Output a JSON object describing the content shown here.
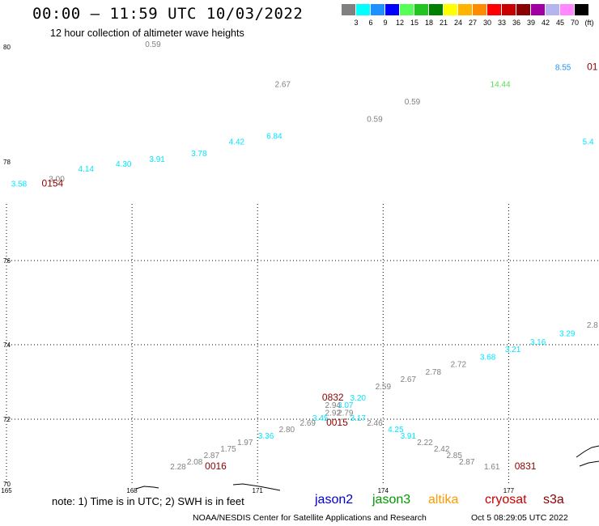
{
  "header": {
    "title": "00:00 – 11:59 UTC 10/03/2022",
    "subtitle": "12 hour collection of altimeter wave heights"
  },
  "legend": {
    "colors": [
      "#808080",
      "#00ffff",
      "#1e90ff",
      "#0000ff",
      "#55ff55",
      "#22c322",
      "#008000",
      "#ffff00",
      "#ffb400",
      "#ff8c00",
      "#ff0000",
      "#c80000",
      "#8b0000",
      "#a000a0",
      "#b4b4f0",
      "#ff88ff",
      "#000000"
    ],
    "labels": [
      "3",
      "6",
      "9",
      "12",
      "15",
      "18",
      "21",
      "24",
      "27",
      "30",
      "33",
      "36",
      "39",
      "42",
      "45",
      "70",
      "(ft)"
    ]
  },
  "chart_data": {
    "type": "scatter",
    "title": "00:00 – 11:59 UTC 10/03/2022",
    "subtitle": "12 hour collection of altimeter wave heights",
    "x_ticks": [
      "165",
      "168",
      "171",
      "174",
      "177"
    ],
    "y_ticks": [
      "70",
      "72",
      "74",
      "76",
      "78",
      "80"
    ],
    "series": [
      {
        "name": "jason3",
        "color": "#00e5ff"
      },
      {
        "name": "jason2",
        "color": "#0000cc"
      },
      {
        "name": "altika",
        "color": "#ff9900"
      },
      {
        "name": "cryosat",
        "color": "#cc0000"
      },
      {
        "name": "s3a",
        "color": "#8b0000"
      }
    ],
    "values": [
      {
        "text": "0.59",
        "color": "#808080",
        "x": 168.5,
        "y": 80.0
      },
      {
        "text": "2.67",
        "color": "#808080",
        "x": 171.6,
        "y": 79.3
      },
      {
        "text": "0.59",
        "color": "#808080",
        "x": 174.7,
        "y": 79.0
      },
      {
        "text": "0.59",
        "color": "#808080",
        "x": 173.8,
        "y": 78.7
      },
      {
        "text": "14.44",
        "color": "#55dd55",
        "x": 176.8,
        "y": 79.3
      },
      {
        "text": "8.55",
        "color": "#1e90ff",
        "x": 178.3,
        "y": 79.6
      },
      {
        "text": "01",
        "color": "#8b0000",
        "x": 179.0,
        "y": 79.6
      },
      {
        "text": "5.4",
        "color": "#00e5ff",
        "x": 178.9,
        "y": 78.3
      },
      {
        "text": "6.84",
        "color": "#00e5ff",
        "x": 171.4,
        "y": 78.4
      },
      {
        "text": "4.42",
        "color": "#00e5ff",
        "x": 170.5,
        "y": 78.3
      },
      {
        "text": "3.78",
        "color": "#00e5ff",
        "x": 169.6,
        "y": 78.1
      },
      {
        "text": "3.91",
        "color": "#00e5ff",
        "x": 168.6,
        "y": 78.0
      },
      {
        "text": "4.30",
        "color": "#00e5ff",
        "x": 167.8,
        "y": 77.9
      },
      {
        "text": "4.14",
        "color": "#00e5ff",
        "x": 166.9,
        "y": 77.8
      },
      {
        "text": "3.00",
        "color": "#808080",
        "x": 166.2,
        "y": 77.6
      },
      {
        "text": "3.58",
        "color": "#00e5ff",
        "x": 165.3,
        "y": 77.5
      },
      {
        "text": "0154",
        "color": "#8b0000",
        "x": 166.1,
        "y": 77.5
      },
      {
        "text": "2.8",
        "color": "#808080",
        "x": 179.0,
        "y": 74.4
      },
      {
        "text": "3.29",
        "color": "#00e5ff",
        "x": 178.4,
        "y": 74.2
      },
      {
        "text": "3.16",
        "color": "#00e5ff",
        "x": 177.7,
        "y": 74.0
      },
      {
        "text": "3.21",
        "color": "#00e5ff",
        "x": 177.1,
        "y": 73.8
      },
      {
        "text": "3.68",
        "color": "#00e5ff",
        "x": 176.5,
        "y": 73.6
      },
      {
        "text": "2.72",
        "color": "#808080",
        "x": 175.8,
        "y": 73.4
      },
      {
        "text": "2.78",
        "color": "#808080",
        "x": 175.2,
        "y": 73.2
      },
      {
        "text": "2.67",
        "color": "#808080",
        "x": 174.6,
        "y": 73.0
      },
      {
        "text": "2.59",
        "color": "#808080",
        "x": 174.0,
        "y": 72.8
      },
      {
        "text": "3.20",
        "color": "#00e5ff",
        "x": 173.4,
        "y": 72.5
      },
      {
        "text": "0832",
        "color": "#8b0000",
        "x": 172.8,
        "y": 72.5
      },
      {
        "text": "3.07",
        "color": "#00e5ff",
        "x": 173.1,
        "y": 72.3
      },
      {
        "text": "2.94",
        "color": "#808080",
        "x": 172.8,
        "y": 72.3
      },
      {
        "text": "2.79",
        "color": "#808080",
        "x": 173.1,
        "y": 72.1
      },
      {
        "text": "2.92",
        "color": "#808080",
        "x": 172.8,
        "y": 72.1
      },
      {
        "text": "3.45",
        "color": "#00e5ff",
        "x": 172.5,
        "y": 71.95
      },
      {
        "text": "3.17",
        "color": "#00e5ff",
        "x": 173.4,
        "y": 71.95
      },
      {
        "text": "0015",
        "color": "#8b0000",
        "x": 172.9,
        "y": 71.8
      },
      {
        "text": "2.69",
        "color": "#808080",
        "x": 172.2,
        "y": 71.8
      },
      {
        "text": "2.46",
        "color": "#808080",
        "x": 173.8,
        "y": 71.8
      },
      {
        "text": "2.80",
        "color": "#808080",
        "x": 171.7,
        "y": 71.6
      },
      {
        "text": "4.25",
        "color": "#00e5ff",
        "x": 174.3,
        "y": 71.6
      },
      {
        "text": "3.36",
        "color": "#00e5ff",
        "x": 171.2,
        "y": 71.4
      },
      {
        "text": "3.91",
        "color": "#00e5ff",
        "x": 174.6,
        "y": 71.4
      },
      {
        "text": "1.97",
        "color": "#808080",
        "x": 170.7,
        "y": 71.2
      },
      {
        "text": "2.22",
        "color": "#808080",
        "x": 175.0,
        "y": 71.2
      },
      {
        "text": "1.75",
        "color": "#808080",
        "x": 170.3,
        "y": 71.0
      },
      {
        "text": "2.42",
        "color": "#808080",
        "x": 175.4,
        "y": 71.0
      },
      {
        "text": "2.87",
        "color": "#808080",
        "x": 169.9,
        "y": 70.8
      },
      {
        "text": "2.85",
        "color": "#808080",
        "x": 175.7,
        "y": 70.8
      },
      {
        "text": "2.08",
        "color": "#808080",
        "x": 169.5,
        "y": 70.6
      },
      {
        "text": "2.87",
        "color": "#808080",
        "x": 176.0,
        "y": 70.6
      },
      {
        "text": "2.28",
        "color": "#808080",
        "x": 169.1,
        "y": 70.45
      },
      {
        "text": "0016",
        "color": "#8b0000",
        "x": 170.0,
        "y": 70.45
      },
      {
        "text": "1.61",
        "color": "#808080",
        "x": 176.6,
        "y": 70.45
      },
      {
        "text": "0831",
        "color": "#8b0000",
        "x": 177.4,
        "y": 70.45
      }
    ]
  },
  "note": {
    "text": "note:  1) Time is in UTC;  2) SWH is in feet",
    "satellites": [
      {
        "label": "jason2",
        "color": "#0000cc"
      },
      {
        "label": "jason3",
        "color": "#009900"
      },
      {
        "label": "altika",
        "color": "#ff9900"
      },
      {
        "label": "cryosat",
        "color": "#cc0000"
      },
      {
        "label": "s3a",
        "color": "#8b0000"
      }
    ]
  },
  "footer": {
    "agency": "NOAA/NESDIS Center for Satellite Applications and Research",
    "timestamp": "Oct  5 08:29:05 UTC 2022"
  }
}
